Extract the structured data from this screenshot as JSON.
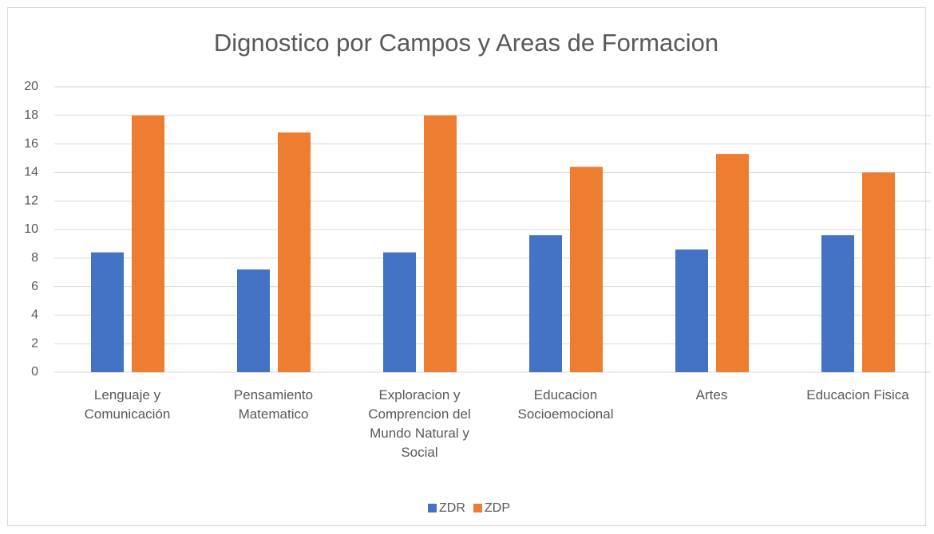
{
  "chart_data": {
    "type": "bar",
    "title": "Dignostico por Campos y Areas de Formacion",
    "categories": [
      "Lenguaje y Comunicación",
      "Pensamiento Matematico",
      "Exploracion y Comprencion del Mundo Natural y Social",
      "Educacion Socioemocional",
      "Artes",
      "Educacion Fisica"
    ],
    "series": [
      {
        "name": "ZDR",
        "color": "#4472c4",
        "values": [
          8.4,
          7.2,
          8.4,
          9.6,
          8.6,
          9.6
        ]
      },
      {
        "name": "ZDP",
        "color": "#ed7d31",
        "values": [
          18,
          16.8,
          18,
          14.4,
          15.3,
          14
        ]
      }
    ],
    "ylim": [
      0,
      20
    ],
    "yticks": [
      0,
      2,
      4,
      6,
      8,
      10,
      12,
      14,
      16,
      18,
      20
    ],
    "grid": true,
    "legend": "bottom"
  }
}
